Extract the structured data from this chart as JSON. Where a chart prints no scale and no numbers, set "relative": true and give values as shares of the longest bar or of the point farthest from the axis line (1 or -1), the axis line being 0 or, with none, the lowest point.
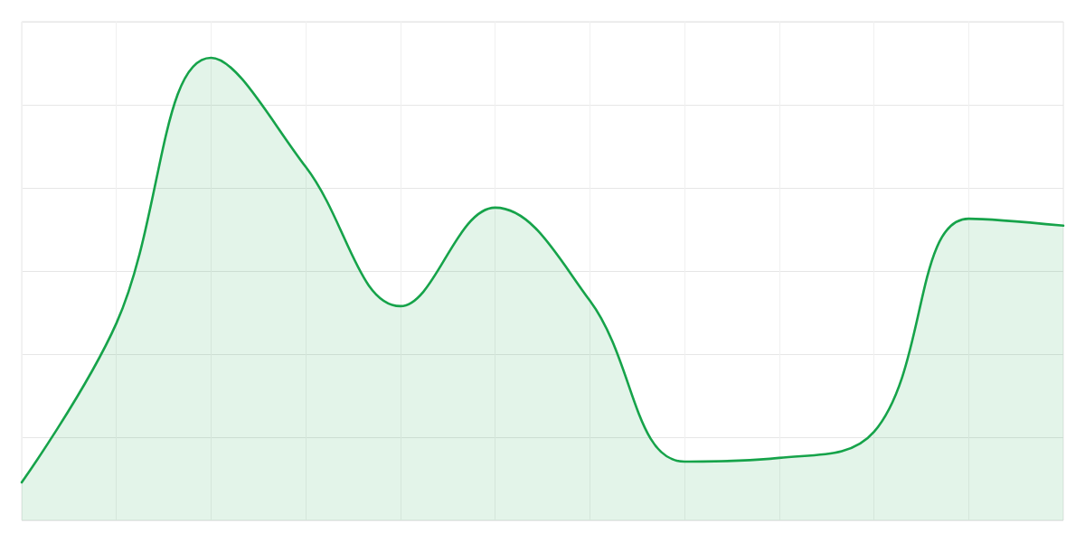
{
  "chart_data": {
    "type": "area",
    "relative": true,
    "categories": [
      null,
      null,
      null,
      null,
      null,
      null,
      null,
      null,
      null,
      null,
      null,
      null
    ],
    "series": [
      {
        "color": "#16a34a",
        "values": [
          0.082,
          0.426,
          1,
          0.764,
          0.463,
          0.676,
          0.475,
          0.127,
          0.135,
          0.191,
          0.652,
          0.637
        ]
      }
    ],
    "grid": true,
    "marker": "none",
    "line_style": "solid"
  }
}
